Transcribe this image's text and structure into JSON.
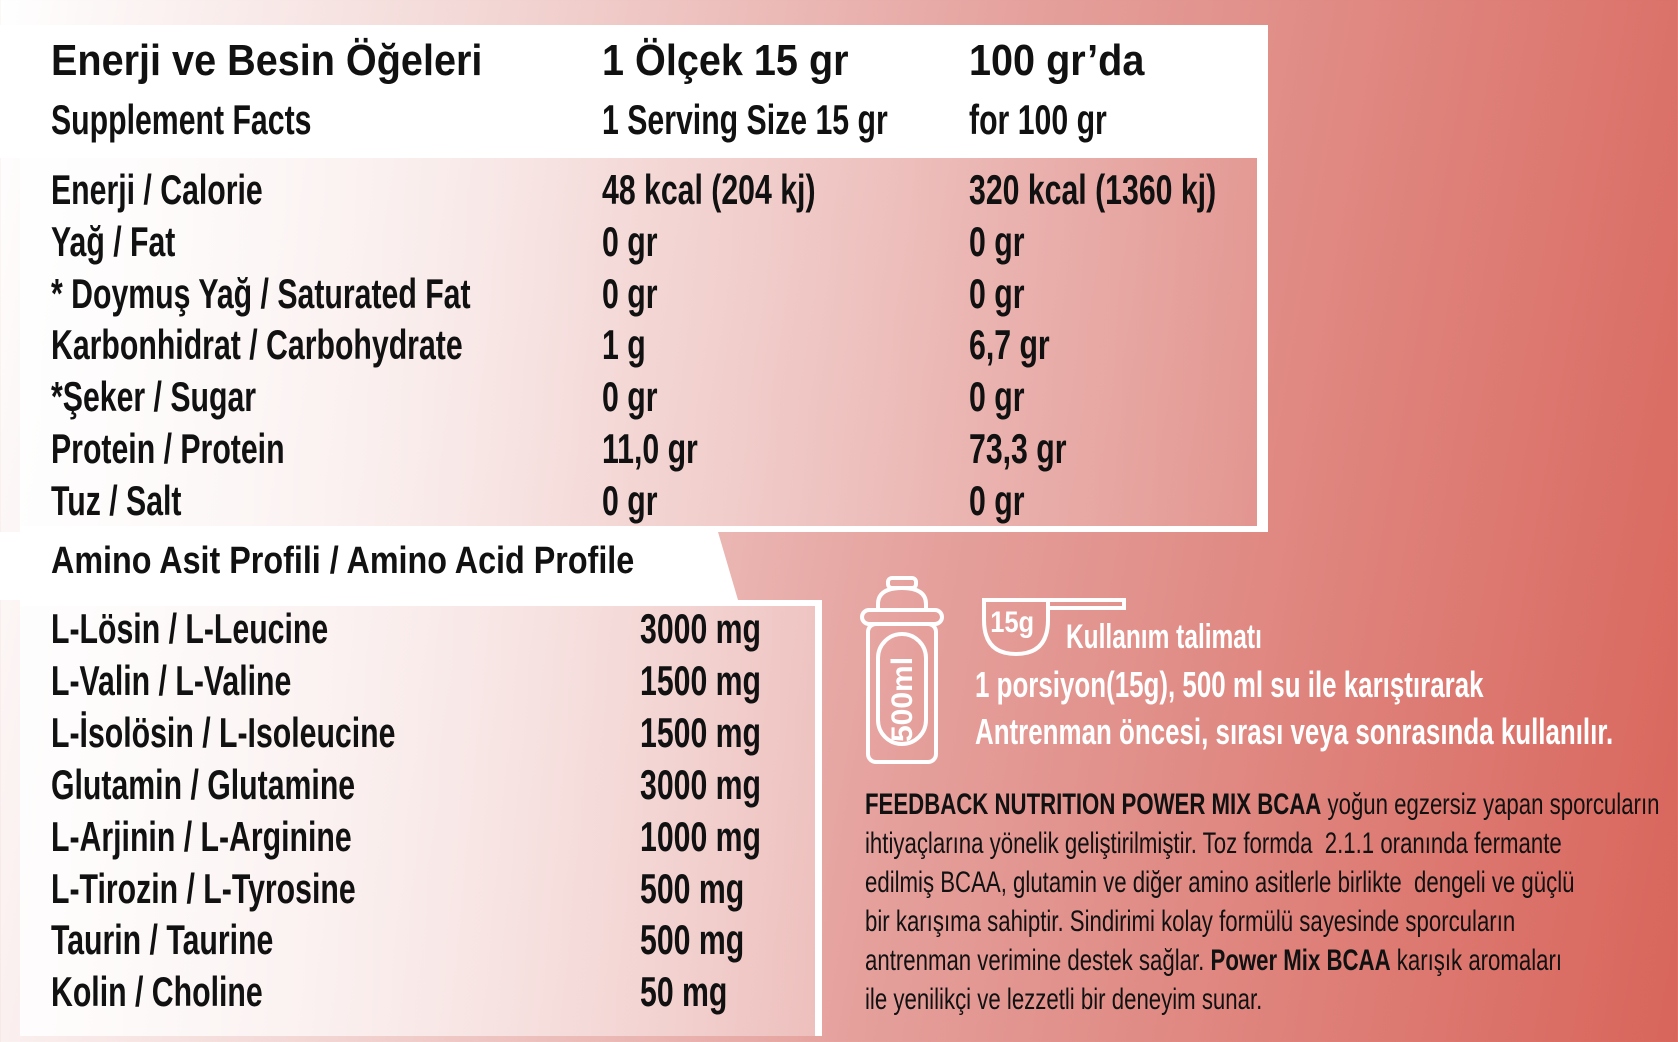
{
  "header": {
    "col1_title": "Enerji ve Besin Öğeleri",
    "col1_sub": "Supplement Facts",
    "col2_title": "1 Ölçek 15 gr",
    "col2_sub": "1 Serving Size 15 gr",
    "col3_title": "100 gr’da",
    "col3_sub": "for 100 gr"
  },
  "nutrition": [
    {
      "name": "Enerji / Calorie",
      "serving": "48 kcal (204 kj)",
      "per100": "320 kcal (1360 kj)"
    },
    {
      "name": "Yağ / Fat",
      "serving": "0 gr",
      "per100": "0 gr"
    },
    {
      "name": "* Doymuş Yağ / Saturated Fat",
      "serving": "0 gr",
      "per100": "0 gr"
    },
    {
      "name": "Karbonhidrat / Carbohydrate",
      "serving": "1 g",
      "per100": "6,7 gr"
    },
    {
      "name": "*Şeker / Sugar",
      "serving": "0 gr",
      "per100": "0 gr"
    },
    {
      "name": "Protein / Protein",
      "serving": "11,0 gr",
      "per100": "73,3 gr"
    },
    {
      "name": "Tuz / Salt",
      "serving": "0 gr",
      "per100": "0 gr"
    }
  ],
  "amino": {
    "title": "Amino Asit Profili / Amino Acid Profile",
    "items": [
      {
        "name": "L-Lösin / L-Leucine",
        "value": "3000 mg"
      },
      {
        "name": "L-Valin / L-Valine",
        "value": "1500 mg"
      },
      {
        "name": "L-İsolösin / L-Isoleucine",
        "value": "1500 mg"
      },
      {
        "name": "Glutamin / Glutamine",
        "value": "3000 mg"
      },
      {
        "name": "L-Arjinin / L-Arginine",
        "value": "1000 mg"
      },
      {
        "name": "L-Tirozin / L-Tyrosine",
        "value": "500 mg"
      },
      {
        "name": "Taurin / Taurine",
        "value": "500 mg"
      },
      {
        "name": "Kolin / Choline",
        "value": "50 mg"
      }
    ]
  },
  "usage": {
    "bottle_label": "500ml",
    "scoop_label": "15g",
    "title": "Kullanım talimatı",
    "line1": "1 porsiyon(15g), 500 ml su ile karıştırarak",
    "line2": "Antrenman öncesi, sırası veya sonrasında kullanılır."
  },
  "description": {
    "lines": [
      {
        "bold": "FEEDBACK NUTRITION POWER MIX BCAA",
        "text": " yoğun egzersiz yapan sporcuların"
      },
      {
        "bold": "",
        "text": "ihtiyaçlarına yönelik geliştirilmiştir. Toz formda  2.1.1 oranında fermante"
      },
      {
        "bold": "",
        "text": "edilmiş BCAA, glutamin ve diğer amino asitlerle birlikte  dengeli ve güçlü"
      },
      {
        "bold": "",
        "text": "bir karışıma sahiptir. Sindirimi kolay formülü sayesinde sporcuların"
      },
      {
        "pre": "antrenman verimine destek sağlar.  ",
        "bold": "Power Mix BCAA",
        "text": " karışık aromaları"
      },
      {
        "bold": "",
        "text": "ile yenilikçi ve lezzetli bir deneyim sunar."
      }
    ]
  },
  "colors": {
    "accent": "#d8655b",
    "panel": "#ffffff"
  }
}
